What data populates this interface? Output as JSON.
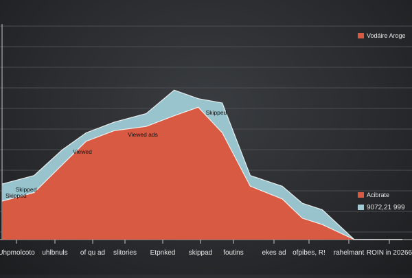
{
  "chart_data": {
    "type": "area",
    "title": "",
    "xlabel": "",
    "ylabel": "",
    "categories": [
      "Uhpmolcoto",
      "uhlbnuls",
      "of qu ad",
      "slitories",
      "Etpnked",
      "skippad",
      "foutins",
      "ekes ad",
      "ofpibes, R!",
      "rahelmant",
      "ROIN in 20266"
    ],
    "x": [
      0,
      0.08,
      0.15,
      0.21,
      0.28,
      0.36,
      0.43,
      0.49,
      0.55,
      0.62,
      0.7,
      0.75,
      0.8,
      0.88,
      0.93,
      1.0
    ],
    "series": [
      {
        "name": "Vodaire Aroge",
        "color": "#d95a43",
        "values": [
          18,
          22,
          35,
          46,
          51,
          53,
          58,
          62,
          50,
          25,
          19,
          10,
          7,
          0,
          0,
          0
        ]
      },
      {
        "name": "Acibrate",
        "color": "#9ecbd6",
        "values": [
          26,
          30,
          42,
          50,
          55,
          59,
          70,
          66,
          64,
          30,
          25,
          17,
          14,
          0,
          0,
          0
        ]
      }
    ],
    "annotations": [
      "Skipped",
      "Viewed",
      "Viewed ads",
      "Skipped",
      "Skipped"
    ],
    "legend_top": {
      "label": "Vodáire Aroge",
      "color": "#d95a43"
    },
    "legend_bottom": [
      {
        "label": "Acibrate",
        "color": "#d95a43"
      },
      {
        "label": "9072,21 999",
        "color": "#9ecbd6"
      }
    ],
    "grid": true,
    "legend_placement": "right"
  }
}
